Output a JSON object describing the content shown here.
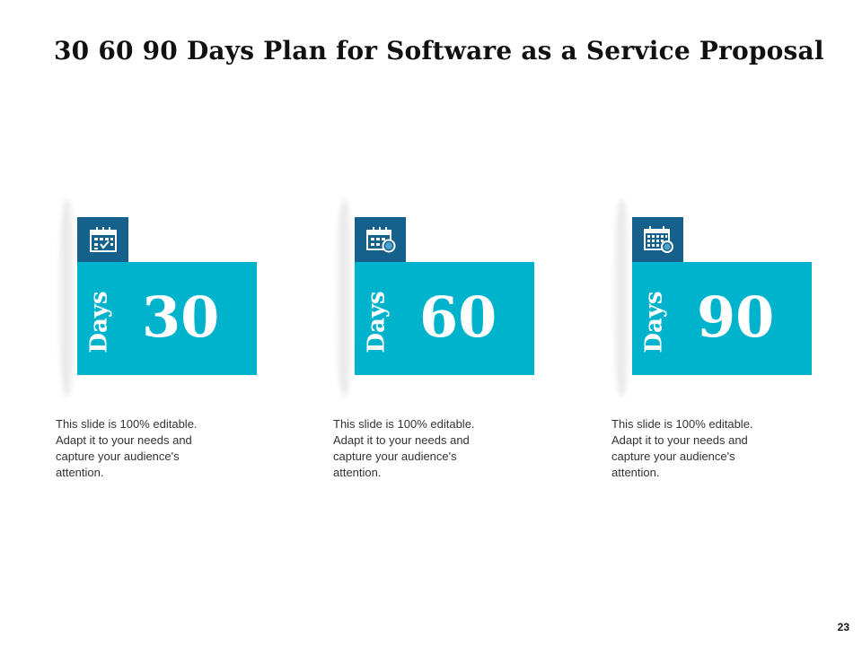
{
  "slide": {
    "title": "30 60 90 Days Plan for Software as a Service Proposal",
    "page_number": "23"
  },
  "colors": {
    "accent": "#00b3cc",
    "icon_box": "#15618b",
    "text": "#333333"
  },
  "cards": [
    {
      "icon": "calendar-check-icon",
      "days_label": "Days",
      "number": "30",
      "description": "This slide is 100% editable. Adapt it to your needs and capture your audience's attention."
    },
    {
      "icon": "calendar-clock-icon",
      "days_label": "Days",
      "number": "60",
      "description": "This slide is 100% editable. Adapt it to your needs and capture your audience's attention."
    },
    {
      "icon": "calendar-grid-icon",
      "days_label": "Days",
      "number": "90",
      "description": "This slide is 100% editable. Adapt it to your needs and capture your audience's attention."
    }
  ]
}
